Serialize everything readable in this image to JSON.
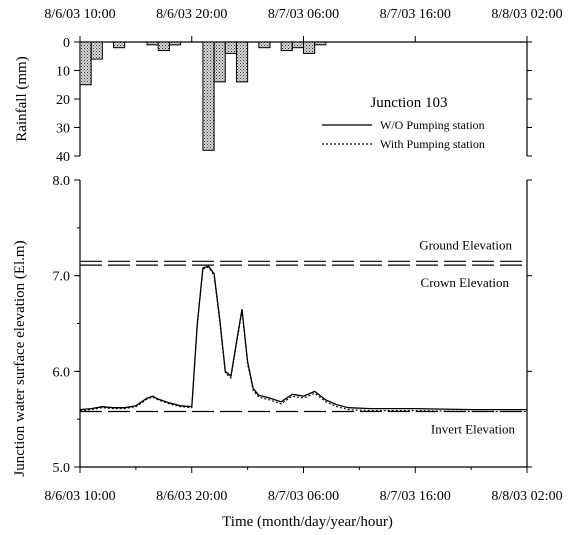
{
  "chart_data": [
    {
      "type": "bar",
      "ylabel": "Rainfall (mm)",
      "ylim": [
        0,
        40
      ],
      "y_inverted": true,
      "yticks": [
        0,
        10,
        20,
        30,
        40
      ],
      "x_ticks": [
        "8/6/03 10:00",
        "8/6/03 20:00",
        "8/7/03 06:00",
        "8/7/03 16:00",
        "8/8/03 02:00"
      ],
      "xlim_hours": [
        10,
        50
      ],
      "bar_width_hours": 1,
      "x_hours": [
        10,
        11,
        13,
        16,
        17,
        18,
        21,
        22,
        23,
        24,
        26,
        28,
        29,
        30,
        31
      ],
      "values": [
        15,
        6,
        2,
        1,
        3,
        1,
        38,
        14,
        4,
        14,
        2,
        3,
        2,
        4,
        1
      ]
    },
    {
      "type": "line",
      "xlabel": "Time (month/day/year/hour)",
      "ylabel": "Junction water surface elevation (El.m)",
      "ylim": [
        5.0,
        8.0
      ],
      "yticks": [
        "5.0",
        "6.0",
        "7.0",
        "8.0"
      ],
      "x_ticks": [
        "8/6/03 10:00",
        "8/6/03 20:00",
        "8/7/03 06:00",
        "8/7/03 16:00",
        "8/8/03 02:00"
      ],
      "xlim_hours": [
        10,
        50
      ],
      "legend_title": "Junction 103",
      "legend_position": "top-right",
      "reference_lines": [
        {
          "name": "Ground Elevation",
          "value": 7.15
        },
        {
          "name": "Crown Elevation",
          "value": 7.11
        },
        {
          "name": "Invert Elevation",
          "value": 5.58
        }
      ],
      "series": [
        {
          "name": "W/O Pumping station",
          "style": "solid",
          "x": [
            10,
            11,
            12,
            13,
            14,
            15,
            16,
            16.5,
            17,
            18,
            19,
            20,
            20.5,
            21,
            21.5,
            22,
            22.5,
            23,
            23.5,
            24,
            24.5,
            25,
            25.5,
            26,
            27,
            28,
            28.5,
            29,
            30,
            31,
            32,
            33,
            34,
            36,
            40,
            45,
            50
          ],
          "y": [
            5.6,
            5.61,
            5.63,
            5.62,
            5.62,
            5.64,
            5.72,
            5.74,
            5.71,
            5.67,
            5.64,
            5.63,
            6.5,
            7.08,
            7.1,
            7.02,
            6.55,
            6.0,
            5.95,
            6.3,
            6.65,
            6.1,
            5.82,
            5.75,
            5.72,
            5.68,
            5.72,
            5.76,
            5.74,
            5.79,
            5.7,
            5.65,
            5.62,
            5.61,
            5.61,
            5.6,
            5.6
          ]
        },
        {
          "name": "With Pumping station",
          "style": "dotted",
          "x": [
            10,
            11,
            12,
            13,
            14,
            15,
            16,
            16.5,
            17,
            18,
            19,
            20,
            20.5,
            21,
            21.5,
            22,
            22.5,
            23,
            23.5,
            24,
            24.5,
            25,
            25.5,
            26,
            27,
            28,
            28.5,
            29,
            30,
            31,
            32,
            33,
            34,
            36,
            40,
            45,
            50
          ],
          "y": [
            5.59,
            5.6,
            5.62,
            5.61,
            5.61,
            5.63,
            5.71,
            5.73,
            5.7,
            5.66,
            5.63,
            5.62,
            6.48,
            7.07,
            7.09,
            7.0,
            6.52,
            5.98,
            5.93,
            6.28,
            6.63,
            6.08,
            5.8,
            5.73,
            5.7,
            5.66,
            5.7,
            5.74,
            5.72,
            5.77,
            5.68,
            5.63,
            5.6,
            5.59,
            5.59,
            5.58,
            5.58
          ]
        }
      ]
    }
  ]
}
